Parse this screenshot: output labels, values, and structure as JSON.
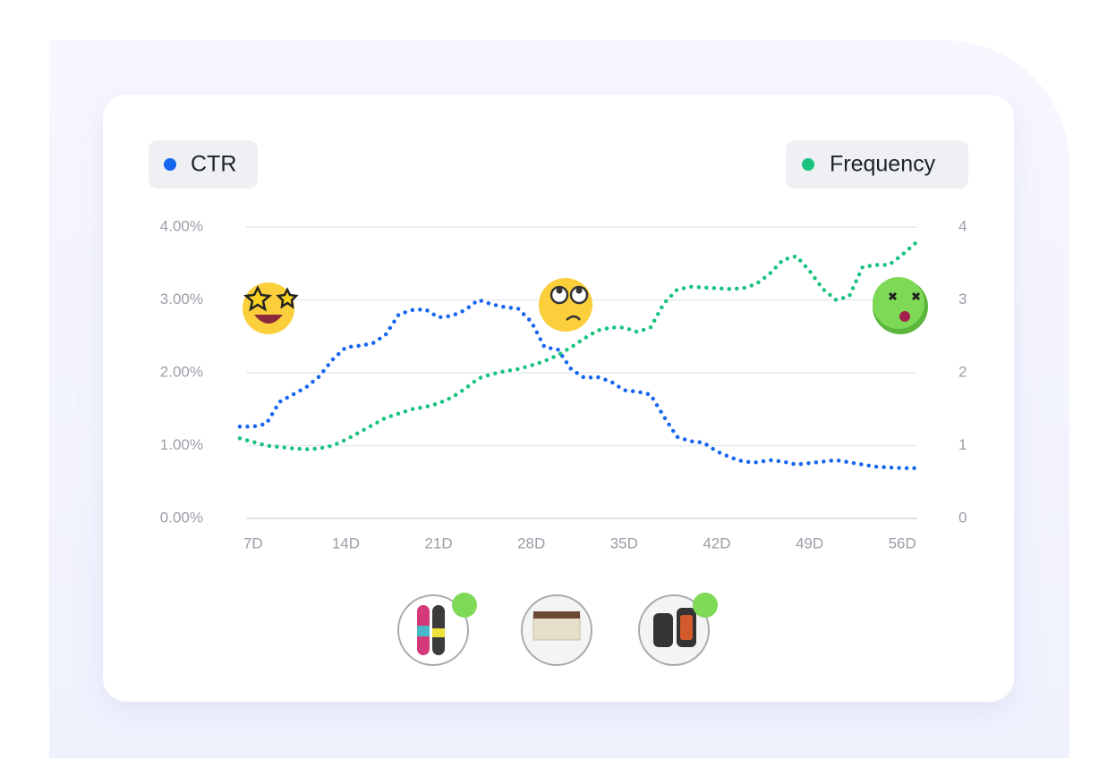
{
  "chart_data": {
    "type": "line",
    "x": [
      6,
      7,
      8,
      9,
      10,
      11,
      12,
      13,
      14,
      15,
      16,
      17,
      18,
      19,
      20,
      21,
      22,
      23,
      24,
      25,
      26,
      27,
      28,
      29,
      30,
      31,
      32,
      33,
      34,
      35,
      36,
      37,
      38,
      39,
      40,
      41,
      42,
      43,
      44,
      45,
      46,
      47,
      48,
      49,
      50,
      51,
      52,
      53,
      54,
      55,
      56,
      57
    ],
    "xlim": [
      6,
      57
    ],
    "xticks": [
      {
        "value": 7,
        "label": "7D"
      },
      {
        "value": 14,
        "label": "14D"
      },
      {
        "value": 21,
        "label": "21D"
      },
      {
        "value": 28,
        "label": "28D"
      },
      {
        "value": 35,
        "label": "35D"
      },
      {
        "value": 42,
        "label": "42D"
      },
      {
        "value": 49,
        "label": "49D"
      },
      {
        "value": 56,
        "label": "56D"
      }
    ],
    "ylim": [
      0,
      4
    ],
    "yticks": [
      {
        "value": 0,
        "label": "0.00%"
      },
      {
        "value": 1,
        "label": "1.00%"
      },
      {
        "value": 2,
        "label": "2.00%"
      },
      {
        "value": 3,
        "label": "3.00%"
      },
      {
        "value": 4,
        "label": "4.00%"
      }
    ],
    "y2lim": [
      0,
      4
    ],
    "y2ticks": [
      0,
      1,
      2,
      3,
      4
    ],
    "grid": true,
    "series": [
      {
        "name": "CTR",
        "color": "#1766f0",
        "values": [
          1.26,
          1.26,
          1.3,
          1.6,
          1.7,
          1.8,
          1.95,
          2.18,
          2.35,
          2.37,
          2.4,
          2.52,
          2.8,
          2.86,
          2.87,
          2.76,
          2.78,
          2.86,
          3.0,
          2.94,
          2.9,
          2.88,
          2.7,
          2.35,
          2.32,
          2.05,
          1.93,
          1.94,
          1.88,
          1.76,
          1.74,
          1.7,
          1.4,
          1.12,
          1.06,
          1.04,
          0.92,
          0.84,
          0.78,
          0.77,
          0.8,
          0.78,
          0.74,
          0.76,
          0.78,
          0.8,
          0.77,
          0.74,
          0.71,
          0.7,
          0.69,
          0.69
        ]
      },
      {
        "name": "Frequency",
        "color": "#19c37d",
        "axis": "y2",
        "values": [
          1.1,
          1.05,
          1.0,
          0.98,
          0.96,
          0.95,
          0.96,
          1.0,
          1.08,
          1.18,
          1.28,
          1.38,
          1.44,
          1.5,
          1.53,
          1.58,
          1.66,
          1.78,
          1.92,
          1.98,
          2.02,
          2.05,
          2.1,
          2.16,
          2.24,
          2.35,
          2.47,
          2.58,
          2.62,
          2.62,
          2.56,
          2.62,
          2.95,
          3.14,
          3.18,
          3.17,
          3.16,
          3.15,
          3.16,
          3.22,
          3.36,
          3.55,
          3.6,
          3.4,
          3.15,
          3.0,
          3.05,
          3.45,
          3.48,
          3.48,
          3.62,
          3.78
        ]
      }
    ]
  }
}
